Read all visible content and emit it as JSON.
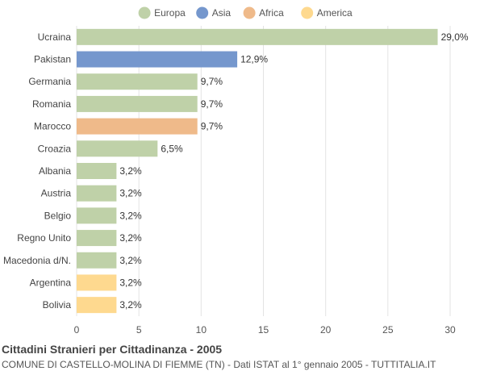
{
  "chart_data": {
    "type": "bar",
    "orientation": "horizontal",
    "title": "Cittadini Stranieri per Cittadinanza - 2005",
    "subtitle": "COMUNE DI CASTELLO-MOLINA DI FIEMME (TN) - Dati ISTAT al 1° gennaio 2005 - TUTTITALIA.IT",
    "legend": {
      "position": "top-center",
      "items": [
        {
          "name": "Europa",
          "color": "#bfd1a8"
        },
        {
          "name": "Asia",
          "color": "#7597cd"
        },
        {
          "name": "Africa",
          "color": "#efba8a"
        },
        {
          "name": "America",
          "color": "#fed98f"
        }
      ]
    },
    "categories": [
      "Ucraina",
      "Pakistan",
      "Germania",
      "Romania",
      "Marocco",
      "Croazia",
      "Albania",
      "Austria",
      "Belgio",
      "Regno Unito",
      "Macedonia d/N.",
      "Argentina",
      "Bolivia"
    ],
    "values": [
      29.0,
      12.9,
      9.7,
      9.7,
      9.7,
      6.5,
      3.2,
      3.2,
      3.2,
      3.2,
      3.2,
      3.2,
      3.2
    ],
    "value_labels": [
      "29,0%",
      "12,9%",
      "9,7%",
      "9,7%",
      "9,7%",
      "6,5%",
      "3,2%",
      "3,2%",
      "3,2%",
      "3,2%",
      "3,2%",
      "3,2%",
      "3,2%"
    ],
    "groups": [
      "Europa",
      "Asia",
      "Europa",
      "Europa",
      "Africa",
      "Europa",
      "Europa",
      "Europa",
      "Europa",
      "Europa",
      "Europa",
      "America",
      "America"
    ],
    "xlim": [
      0,
      30
    ],
    "xticks": [
      0,
      5,
      10,
      15,
      20,
      25,
      30
    ],
    "grid": true
  }
}
